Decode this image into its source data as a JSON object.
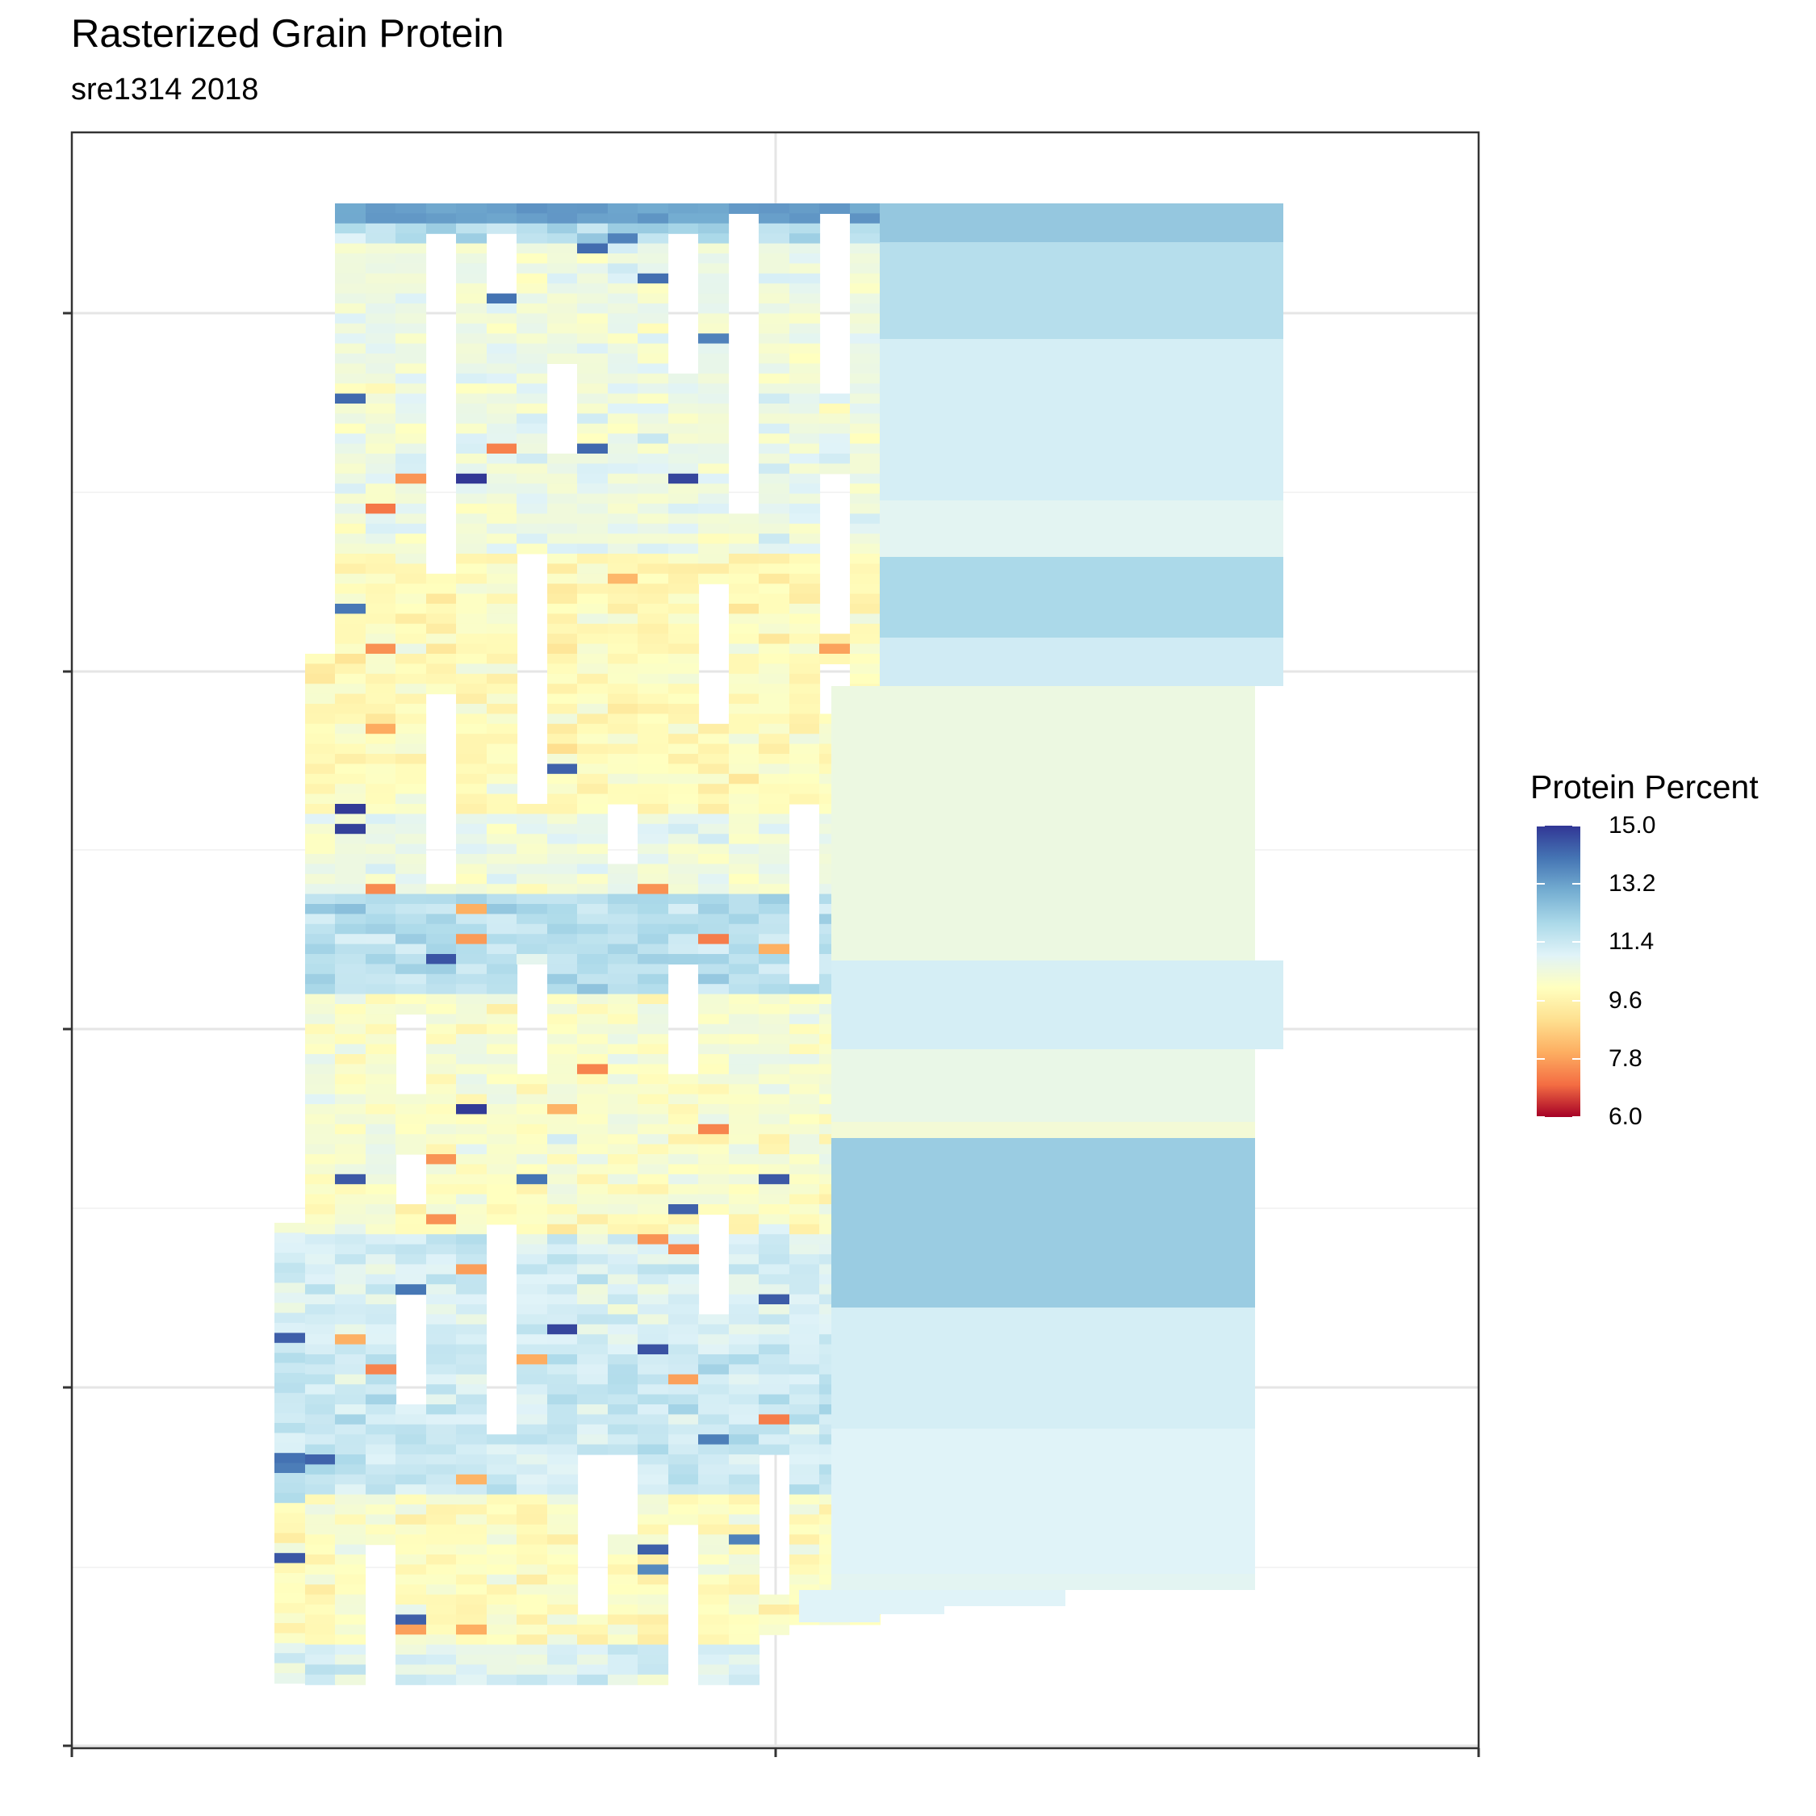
{
  "title": "Rasterized Grain Protein",
  "subtitle": "sre1314 2018",
  "legend": {
    "title": "Protein Percent",
    "ticks": [
      "15.0",
      "13.2",
      "11.4",
      "9.6",
      "7.8",
      "6.0"
    ]
  },
  "colors": {
    "scale": [
      "#a50026",
      "#f46d43",
      "#fdae61",
      "#fee090",
      "#ffffbf",
      "#e0f3f8",
      "#abd9e9",
      "#74add1",
      "#4575b4",
      "#313695"
    ],
    "grid": "#e5e5e5",
    "panel_border": "#333333"
  },
  "chart_data": {
    "type": "heatmap",
    "title": "Rasterized Grain Protein",
    "subtitle": "sre1314 2018",
    "xlabel": "",
    "ylabel": "",
    "x_tick_labels": [
      "",
      "",
      ""
    ],
    "y_tick_labels": [
      "",
      "",
      "",
      "",
      ""
    ],
    "grid": true,
    "legend_position": "right",
    "value_range": [
      6.0,
      15.0
    ],
    "zones": [
      {
        "name": "",
        "value": 12.4
      },
      {
        "name": "",
        "value": 11.8
      },
      {
        "name": "",
        "value": 11.2
      },
      {
        "name": "",
        "value": 10.9
      },
      {
        "name": "",
        "value": 12.0
      },
      {
        "name": "",
        "value": 11.3
      },
      {
        "name": "",
        "value": 10.6
      },
      {
        "name": "",
        "value": 11.2
      },
      {
        "name": "",
        "value": 10.7
      },
      {
        "name": "",
        "value": 10.4
      },
      {
        "name": "",
        "value": 12.3
      },
      {
        "name": "",
        "value": 11.2
      },
      {
        "name": "",
        "value": 11.0
      },
      {
        "name": "",
        "value": 10.9
      }
    ]
  }
}
